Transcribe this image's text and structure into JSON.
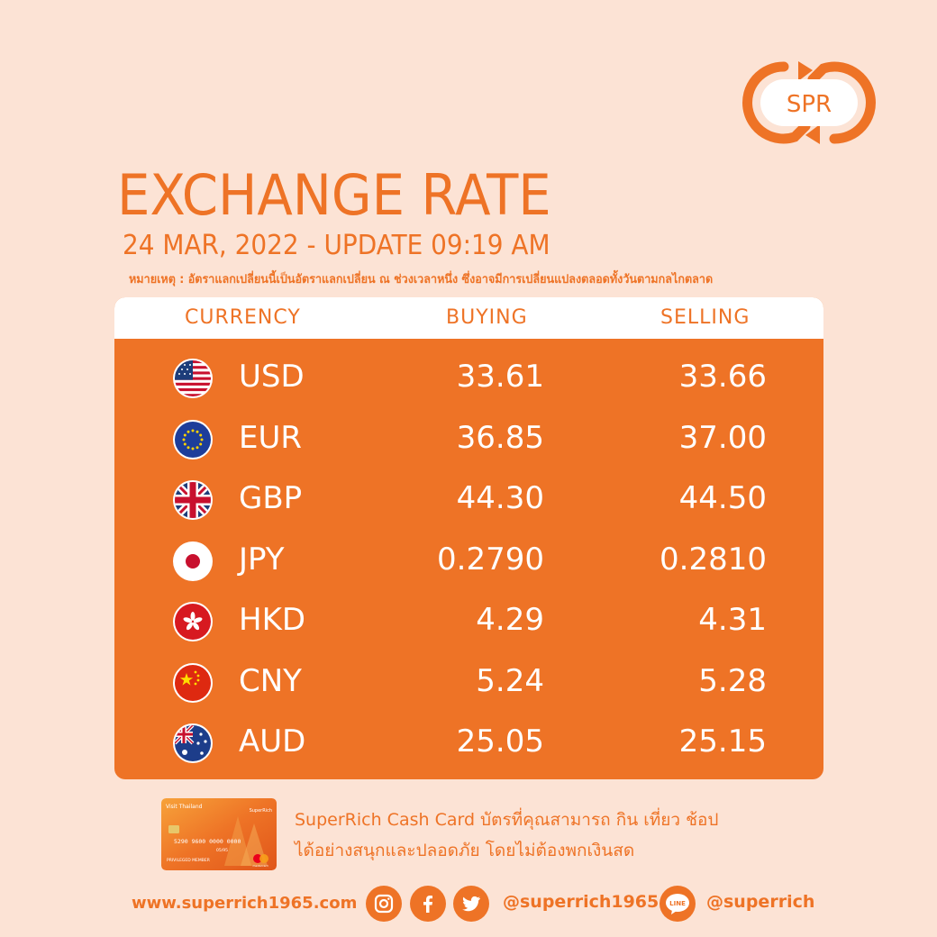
{
  "brand": {
    "logo_text": "SPR",
    "color": "#ee7326"
  },
  "header": {
    "title": "EXCHANGE RATE",
    "subtitle": "24 MAR, 2022 - UPDATE 09:19 AM",
    "note": "หมายเหตุ : อัตราแลกเปลี่ยนนี้เป็นอัตราแลกเปลี่ยน ณ ช่วงเวลาหนึ่ง ซึ่งอาจมีการเปลี่ยนแปลงตลอดทั้งวันตามกลไกตลาด"
  },
  "table": {
    "headers": {
      "currency": "CURRENCY",
      "buying": "BUYING",
      "selling": "SELLING"
    },
    "rows": [
      {
        "flag": "us-flag-icon",
        "code": "USD",
        "buying": "33.61",
        "selling": "33.66"
      },
      {
        "flag": "eu-flag-icon",
        "code": "EUR",
        "buying": "36.85",
        "selling": "37.00"
      },
      {
        "flag": "uk-flag-icon",
        "code": "GBP",
        "buying": "44.30",
        "selling": "44.50"
      },
      {
        "flag": "japan-flag-icon",
        "code": "JPY",
        "buying": "0.2790",
        "selling": "0.2810"
      },
      {
        "flag": "hongkong-flag-icon",
        "code": "HKD",
        "buying": "4.29",
        "selling": "4.31"
      },
      {
        "flag": "china-flag-icon",
        "code": "CNY",
        "buying": "5.24",
        "selling": "5.28"
      },
      {
        "flag": "australia-flag-icon",
        "code": "AUD",
        "buying": "25.05",
        "selling": "25.15"
      }
    ]
  },
  "promo": {
    "card_header": "Visit Thailand",
    "card_brand": "SuperRich",
    "card_number": "5290 9600 0000 0000",
    "card_expiry": "05/95",
    "card_holder": "PRIVILEGED MEMBER",
    "card_network": "mastercard",
    "line1": "SuperRich Cash Card บัตรที่คุณสามารถ กิน เที่ยว ช้อป",
    "line2": "ได้อย่างสนุกและปลอดภัย โดยไม่ต้องพกเงินสด"
  },
  "footer": {
    "website": "www.superrich1965.com",
    "social_handle": "@superrich1965",
    "line_label": "LINE",
    "line_handle": "@superrich"
  }
}
